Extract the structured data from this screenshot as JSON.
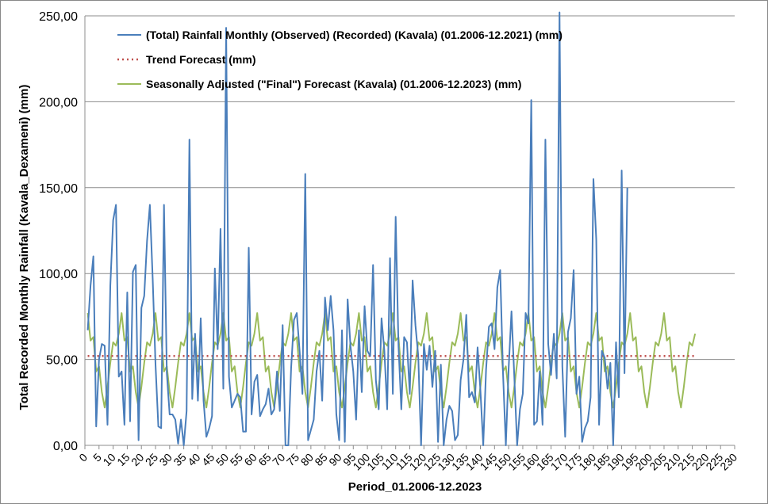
{
  "chart_data": {
    "type": "line",
    "title": "",
    "xlabel": "Period_01.2006-12.2023",
    "ylabel": "Total Recorded Monthly Rainfall (Kavala_Dexameni) (mm)",
    "xlim": [
      0,
      230
    ],
    "ylim": [
      0,
      250
    ],
    "x_tick_step": 5,
    "y_ticks": [
      "0,00",
      "50,00",
      "100,00",
      "150,00",
      "200,00",
      "250,00"
    ],
    "grid": "horizontal",
    "legend_position": "top-left",
    "series": [
      {
        "name": "(Total) Rainfall Monthly (Observed) (Recorded) (Kavala) (01.2006-12.2021) (mm)",
        "color": "#4a7ebb",
        "style": "solid",
        "x_start": 1,
        "values": [
          67,
          93,
          110,
          11,
          50,
          59,
          58,
          12,
          93,
          131,
          140,
          40,
          43,
          12,
          89,
          14,
          101,
          105,
          3,
          80,
          87,
          119,
          140,
          97,
          47,
          11,
          10,
          140,
          42,
          18,
          18,
          15,
          1,
          15,
          0,
          20,
          178,
          27,
          65,
          26,
          74,
          26,
          5,
          10,
          17,
          103,
          56,
          126,
          33,
          243,
          40,
          22,
          26,
          30,
          28,
          8,
          8,
          115,
          18,
          37,
          41,
          17,
          21,
          24,
          33,
          18,
          21,
          43,
          20,
          70,
          0,
          0,
          45,
          73,
          77,
          55,
          30,
          158,
          3,
          9,
          15,
          43,
          55,
          26,
          86,
          67,
          87,
          67,
          18,
          3,
          67,
          2,
          85,
          58,
          43,
          15,
          67,
          31,
          81,
          55,
          52,
          105,
          38,
          21,
          74,
          55,
          21,
          109,
          30,
          133,
          58,
          21,
          63,
          60,
          30,
          96,
          70,
          52,
          0,
          59,
          44,
          58,
          34,
          55,
          2,
          47,
          0,
          15,
          23,
          20,
          3,
          6,
          38,
          50,
          76,
          28,
          31,
          25,
          57,
          32,
          0,
          44,
          69,
          71,
          56,
          92,
          102,
          42,
          0,
          45,
          78,
          40,
          0,
          21,
          30,
          77,
          71,
          201,
          12,
          14,
          43,
          12,
          178,
          59,
          41,
          65,
          39,
          252,
          46,
          5,
          66,
          74,
          102,
          30,
          40,
          2,
          10,
          14,
          28,
          155,
          120,
          12,
          55,
          51,
          33,
          48,
          0,
          60,
          28,
          160,
          42,
          150
        ]
      },
      {
        "name": "Trend Forecast (mm)",
        "color": "#c0504d",
        "style": "dotted",
        "x_start": 1,
        "x_end": 216,
        "value": 52
      },
      {
        "name": "Seasonally Adjusted (\"Final\") Forecast (Kavala) (01.2006-12.2023) (mm)",
        "color": "#9bbb59",
        "style": "solid",
        "x_start": 1,
        "seasonal_pattern": [
          77,
          61,
          63,
          43,
          46,
          31,
          22,
          34,
          48,
          60,
          58,
          65
        ]
      }
    ]
  }
}
